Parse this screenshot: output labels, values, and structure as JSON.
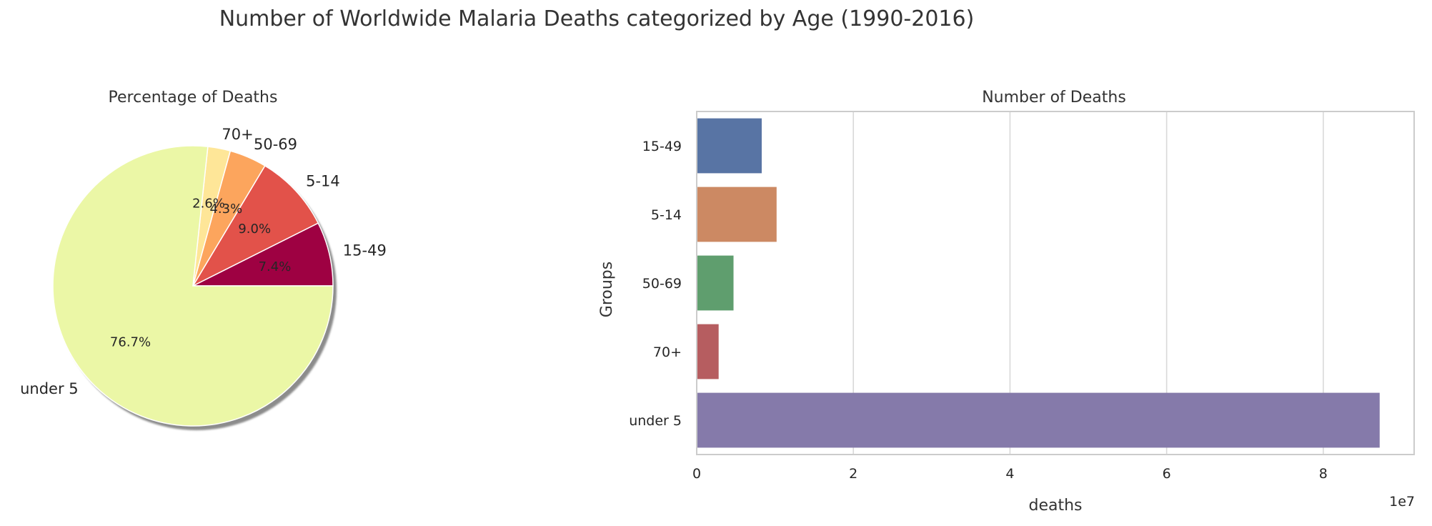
{
  "figure": {
    "title": "Number of Worldwide Malaria Deaths categorized by Age (1990-2016)"
  },
  "chart_data": [
    {
      "type": "pie",
      "title": "Percentage of Deaths",
      "categories": [
        "15-49",
        "5-14",
        "50-69",
        "70+",
        "under 5"
      ],
      "values": [
        7.4,
        9.0,
        4.3,
        2.6,
        76.7
      ],
      "value_labels": [
        "7.4%",
        "9.0%",
        "4.3%",
        "2.6%",
        "76.7%"
      ],
      "colors": [
        "#9e0142",
        "#e2524a",
        "#fca55d",
        "#fee698",
        "#ebf7a6"
      ],
      "start_angle_deg": 0,
      "direction": "counterclockwise",
      "shadow": true
    },
    {
      "type": "bar",
      "orientation": "horizontal",
      "title": "Number of Deaths",
      "categories": [
        "15-49",
        "5-14",
        "50-69",
        "70+",
        "under 5"
      ],
      "values": [
        8300000,
        10200000,
        4700000,
        2800000,
        87200000
      ],
      "colors": [
        "#5874a4",
        "#cc8963",
        "#5f9e6e",
        "#b65d60",
        "#857aaa"
      ],
      "xlabel": "deaths",
      "ylabel": "Groups",
      "xlim": [
        0,
        91600000
      ],
      "x_ticks": [
        0,
        20000000,
        40000000,
        60000000,
        80000000
      ],
      "x_tick_labels": [
        "0",
        "2",
        "4",
        "6",
        "8"
      ],
      "x_offset_label": "1e7",
      "grid": "vertical"
    }
  ]
}
